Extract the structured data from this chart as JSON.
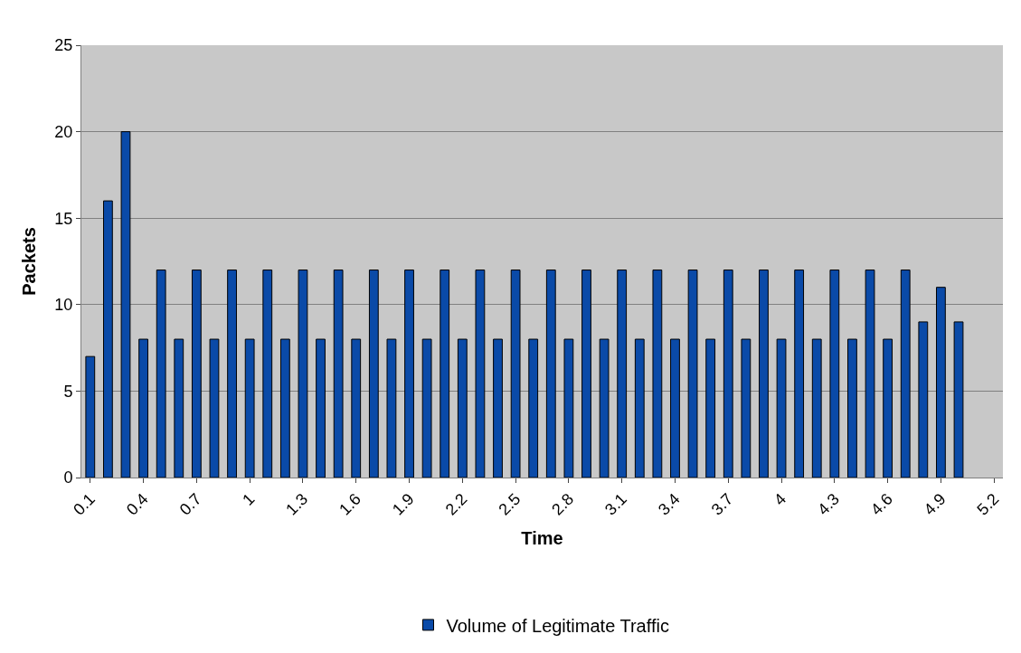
{
  "chart_data": {
    "type": "bar",
    "xlabel": "Time",
    "ylabel": "Packets",
    "categories": [
      "0.1",
      null,
      null,
      "0.4",
      null,
      null,
      "0.7",
      null,
      null,
      "1",
      null,
      null,
      "1.3",
      null,
      null,
      "1.6",
      null,
      null,
      "1.9",
      null,
      null,
      "2.2",
      null,
      null,
      "2.5",
      null,
      null,
      "2.8",
      null,
      null,
      "3.1",
      null,
      null,
      "3.4",
      null,
      null,
      "3.7",
      null,
      null,
      "4",
      null,
      null,
      "4.3",
      null,
      null,
      "4.6",
      null,
      null,
      "4.9",
      null,
      null,
      "5.2"
    ],
    "series": [
      {
        "name": "Volume of Legitimate Traffic",
        "color": "#0a4aa8",
        "values": [
          7,
          16,
          20,
          8,
          12,
          8,
          12,
          8,
          12,
          8,
          12,
          8,
          12,
          8,
          12,
          8,
          12,
          8,
          12,
          8,
          12,
          8,
          12,
          8,
          12,
          8,
          12,
          8,
          12,
          8,
          12,
          8,
          12,
          8,
          12,
          8,
          12,
          8,
          12,
          8,
          12,
          8,
          12,
          8,
          12,
          8,
          12,
          9,
          11,
          9,
          null,
          null
        ]
      }
    ],
    "ylim": [
      0,
      25
    ],
    "yticks": [
      0,
      5,
      10,
      15,
      20,
      25
    ],
    "grid": "y",
    "legend": "bottom"
  }
}
